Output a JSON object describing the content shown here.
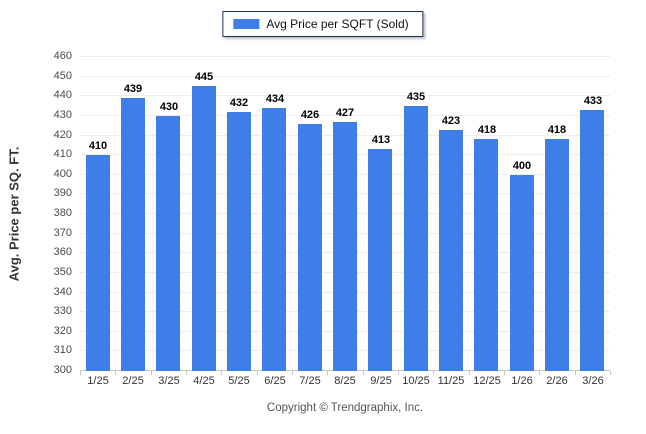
{
  "legend": {
    "label": "Avg Price per SQFT (Sold)"
  },
  "chart_data": {
    "type": "bar",
    "title": "",
    "series_name": "Avg Price per SQFT (Sold)",
    "categories": [
      "1/25",
      "2/25",
      "3/25",
      "4/25",
      "5/25",
      "6/25",
      "7/25",
      "8/25",
      "9/25",
      "10/25",
      "11/25",
      "12/25",
      "1/26",
      "2/26",
      "3/26"
    ],
    "values": [
      410,
      439,
      430,
      445,
      432,
      434,
      426,
      427,
      413,
      435,
      423,
      418,
      400,
      418,
      433
    ],
    "xlabel": "",
    "ylabel": "Avg. Price per SQ. FT.",
    "ylim": [
      300,
      460
    ],
    "yticks": [
      300,
      310,
      320,
      330,
      340,
      350,
      360,
      370,
      380,
      390,
      400,
      410,
      420,
      430,
      440,
      450,
      460
    ],
    "grid": "horizontal",
    "legend_position": "top-center",
    "data_labels": "above-bars"
  },
  "colors": {
    "bar": "#3D7EE8",
    "grid": "#ededed",
    "axis": "#c8c8c8",
    "legend_border": "#1c2f5e"
  },
  "footer": {
    "copyright": "Copyright © Trendgraphix, Inc."
  }
}
